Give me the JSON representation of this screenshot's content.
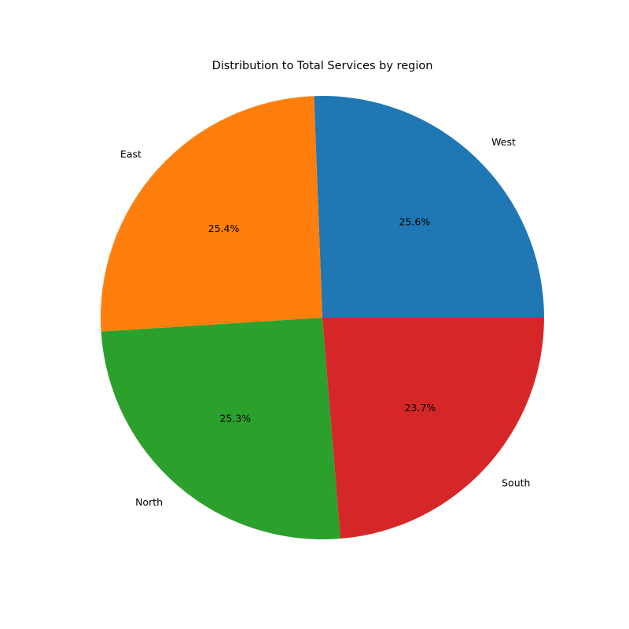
{
  "chart_data": {
    "type": "pie",
    "title": "Distribution to Total Services by region",
    "slices": [
      {
        "label": "West",
        "percent": 25.6,
        "percent_label": "25.6%",
        "color": "#1f77b4"
      },
      {
        "label": "East",
        "percent": 25.4,
        "percent_label": "25.4%",
        "color": "#ff7f0e"
      },
      {
        "label": "North",
        "percent": 25.3,
        "percent_label": "25.3%",
        "color": "#2ca02c"
      },
      {
        "label": "South",
        "percent": 23.7,
        "percent_label": "23.7%",
        "color": "#d62728"
      }
    ],
    "start_angle_deg": 0,
    "direction": "counterclockwise",
    "legend": "none"
  }
}
